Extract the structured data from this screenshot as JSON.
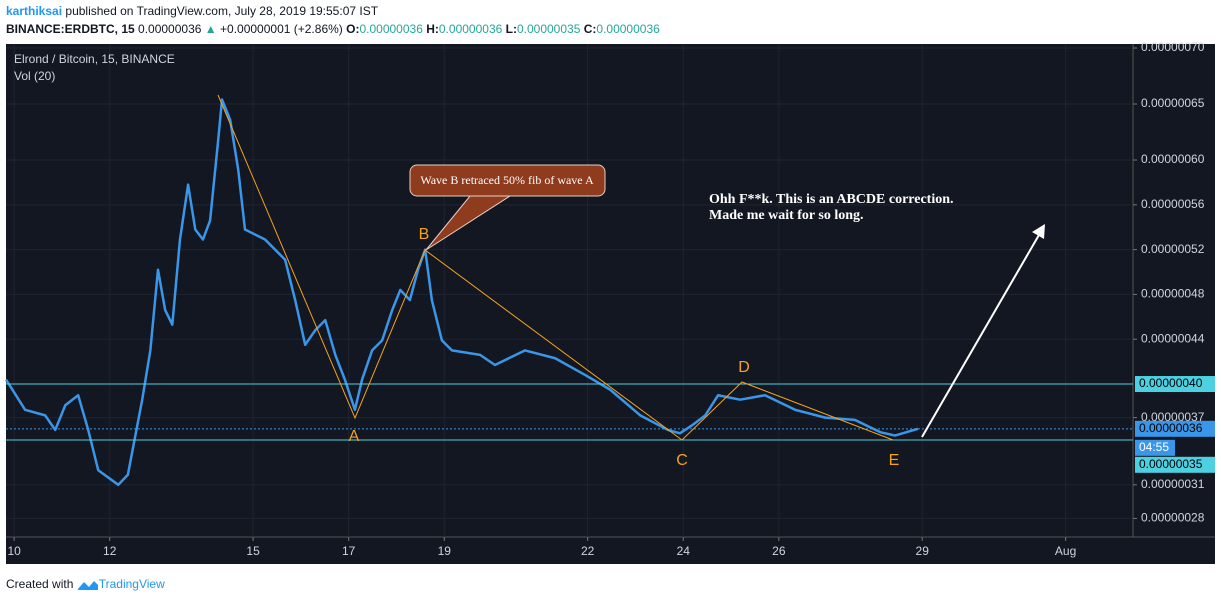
{
  "header": {
    "user": "karthiksai",
    "published": "published on TradingView.com, July 28, 2019 19:55:07 IST",
    "symbol": "BINANCE:ERDBTC, 15",
    "last": "0.00000036",
    "change": "+0.00000001 (+2.86%)",
    "ohlc": [
      "O:",
      "0.00000036",
      "H:",
      "0.00000036",
      "L:",
      "0.00000035",
      "C:",
      "0.00000036"
    ]
  },
  "footer": {
    "created": "Created with",
    "brand": "TradingView"
  },
  "chart_data": {
    "type": "line",
    "title": "Elrond / Bitcoin, 15, BINANCE",
    "subtitle": "Vol (20)",
    "x": [
      9.83,
      10.23,
      10.65,
      10.86,
      11.07,
      11.34,
      11.55,
      11.76,
      12.18,
      12.38,
      12.68,
      12.85,
      13.01,
      13.16,
      13.31,
      13.47,
      13.64,
      13.79,
      13.95,
      14.1,
      14.27,
      14.35,
      14.52,
      14.69,
      14.83,
      15.25,
      15.67,
      15.88,
      16.09,
      16.3,
      16.51,
      16.72,
      16.92,
      17.13,
      17.28,
      17.49,
      17.7,
      17.91,
      18.08,
      18.28,
      18.45,
      18.6,
      18.74,
      18.95,
      19.16,
      19.75,
      20.06,
      20.69,
      21.32,
      21.95,
      22.47,
      23.1,
      23.68,
      23.93,
      24.18,
      24.46,
      24.73,
      25.19,
      25.71,
      26.34,
      26.97,
      27.59,
      28.12,
      28.43,
      28.91
    ],
    "series": [
      {
        "color": "#3a96e8",
        "values": [
          4.04e-07,
          3.77e-07,
          3.72e-07,
          3.59e-07,
          3.81e-07,
          3.9e-07,
          3.59e-07,
          3.23e-07,
          3.1e-07,
          3.19e-07,
          3.86e-07,
          4.3e-07,
          5.02e-07,
          4.66e-07,
          4.53e-07,
          5.29e-07,
          5.78e-07,
          5.38e-07,
          5.29e-07,
          5.46e-07,
          6.18e-07,
          6.54e-07,
          6.36e-07,
          5.91e-07,
          5.38e-07,
          5.29e-07,
          5.11e-07,
          4.75e-07,
          4.35e-07,
          4.48e-07,
          4.57e-07,
          4.26e-07,
          4.04e-07,
          3.77e-07,
          4.04e-07,
          4.3e-07,
          4.39e-07,
          4.66e-07,
          4.84e-07,
          4.75e-07,
          5.02e-07,
          5.2e-07,
          4.75e-07,
          4.39e-07,
          4.3e-07,
          4.26e-07,
          4.17e-07,
          4.3e-07,
          4.23e-07,
          4.08e-07,
          3.95e-07,
          3.72e-07,
          3.59e-07,
          3.56e-07,
          3.63e-07,
          3.72e-07,
          3.9e-07,
          3.86e-07,
          3.9e-07,
          3.77e-07,
          3.7e-07,
          3.68e-07,
          3.57e-07,
          3.54e-07,
          3.6e-07
        ]
      }
    ],
    "xlim": [
      9.83,
      33.41
    ],
    "xticks": [
      10,
      12,
      15,
      17,
      19,
      22,
      24,
      26,
      29,
      {
        "value": 32,
        "label": "Aug"
      }
    ],
    "ylim": [
      2.634e-07,
      7.036e-07
    ],
    "yticks": [
      {
        "value": 7e-07,
        "label": "0.00000070"
      },
      {
        "value": 6.5e-07,
        "label": "0.00000065"
      },
      {
        "value": 6e-07,
        "label": "0.00000060"
      },
      {
        "value": 5.6e-07,
        "label": "0.00000056"
      },
      {
        "value": 5.2e-07,
        "label": "0.00000052"
      },
      {
        "value": 4.8e-07,
        "label": "0.00000048"
      },
      {
        "value": 4.4e-07,
        "label": "0.00000044"
      },
      {
        "value": 3.7e-07,
        "label": "0.00000037"
      },
      {
        "value": 3.1e-07,
        "label": "0.00000031"
      },
      {
        "value": 2.8e-07,
        "label": "0.00000028"
      }
    ],
    "price_lines": [
      {
        "value": 4e-07,
        "label": "0.00000040",
        "color": "#4dd0e1"
      },
      {
        "value": 3.6e-07,
        "label": "0.00000036",
        "color": "#3a96e8"
      },
      {
        "value": 3.5e-07,
        "label": "0.00000035",
        "color": "#4dd0e1"
      }
    ],
    "countdown": "04:55",
    "grid": true,
    "annotations": {
      "waves": [
        "A",
        "B",
        "C",
        "D",
        "E"
      ],
      "callout": "Wave B retraced 50% fib of wave A",
      "note": [
        "Ohh F**k. This is an ABCDE correction.",
        "Made me wait for so long."
      ]
    }
  }
}
